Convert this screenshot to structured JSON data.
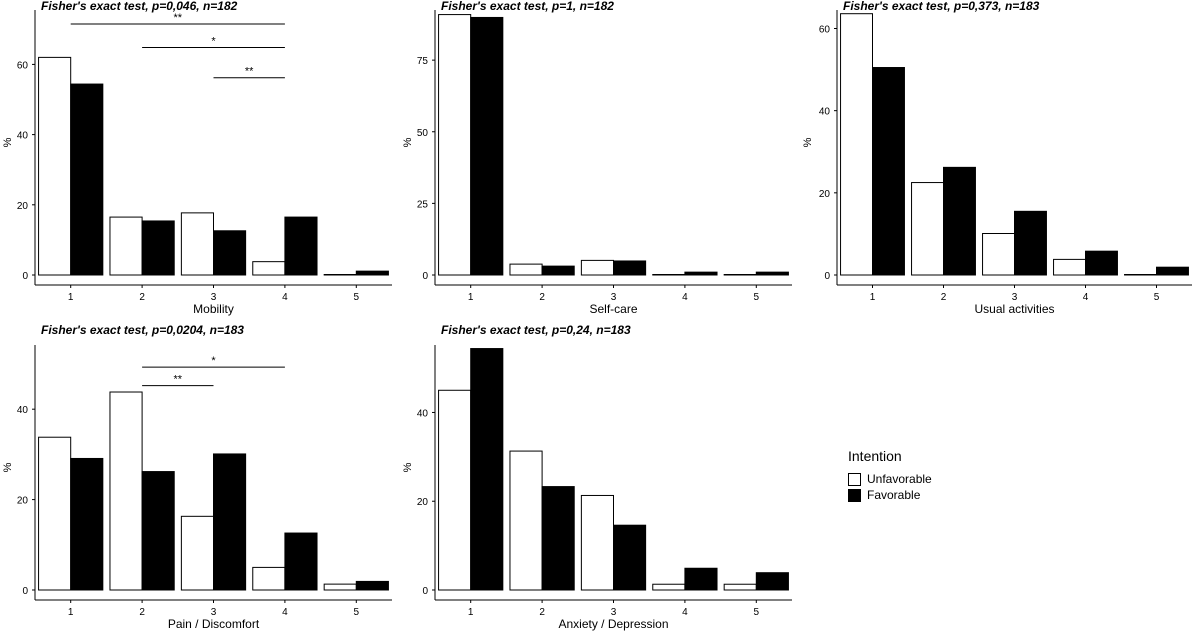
{
  "legend": {
    "title": "Intention",
    "entries": [
      {
        "name": "Unfavorable",
        "color": "#ffffff"
      },
      {
        "name": "Favorable",
        "color": "#000000"
      }
    ]
  },
  "chart_data": [
    {
      "id": "mobility",
      "type": "bar",
      "title": "Fisher's exact test, p=0,046, n=182",
      "xlabel": "Mobility",
      "ylabel": "%",
      "categories": [
        "1",
        "2",
        "3",
        "4",
        "5"
      ],
      "yticks": [
        0,
        20,
        40,
        60
      ],
      "ylim": [
        0,
        75.5
      ],
      "series": [
        {
          "name": "Unfavorable",
          "color": "#ffffff",
          "values": [
            62.0,
            16.5,
            17.7,
            3.8,
            0.1
          ]
        },
        {
          "name": "Favorable",
          "color": "#000000",
          "values": [
            54.4,
            15.4,
            12.6,
            16.5,
            1.1
          ]
        }
      ],
      "annotations": [
        {
          "from": "1",
          "to": "4",
          "y": 71.5,
          "label": "**"
        },
        {
          "from": "2",
          "to": "4",
          "y": 64.8,
          "label": "*"
        },
        {
          "from": "3",
          "to": "4",
          "y": 56.2,
          "label": "**"
        }
      ]
    },
    {
      "id": "selfcare",
      "type": "bar",
      "title": "Fisher's exact test, p=1, n=182",
      "xlabel": "Self-care",
      "ylabel": "%",
      "categories": [
        "1",
        "2",
        "3",
        "4",
        "5"
      ],
      "yticks": [
        0,
        25,
        50,
        75
      ],
      "ylim": [
        0,
        92.5
      ],
      "series": [
        {
          "name": "Unfavorable",
          "color": "#ffffff",
          "values": [
            90.9,
            3.8,
            5.1,
            0.1,
            0.1
          ]
        },
        {
          "name": "Favorable",
          "color": "#000000",
          "values": [
            89.9,
            3.1,
            4.9,
            1.0,
            1.0
          ]
        }
      ],
      "annotations": []
    },
    {
      "id": "usual",
      "type": "bar",
      "title": "Fisher's exact test, p=0,373, n=183",
      "xlabel": "Usual activities",
      "ylabel": "%",
      "categories": [
        "1",
        "2",
        "3",
        "4",
        "5"
      ],
      "yticks": [
        0,
        20,
        40,
        60
      ],
      "ylim": [
        0,
        64.5
      ],
      "series": [
        {
          "name": "Unfavorable",
          "color": "#ffffff",
          "values": [
            63.6,
            22.5,
            10.1,
            3.8,
            0.1
          ]
        },
        {
          "name": "Favorable",
          "color": "#000000",
          "values": [
            50.5,
            26.2,
            15.5,
            5.8,
            1.9
          ]
        }
      ],
      "annotations": []
    },
    {
      "id": "pain",
      "type": "bar",
      "title": "Fisher's exact test, p=0,0204, n=183",
      "xlabel": "Pain / Discomfort",
      "ylabel": "%",
      "categories": [
        "1",
        "2",
        "3",
        "4",
        "5"
      ],
      "yticks": [
        0,
        20,
        40
      ],
      "ylim": [
        0,
        54.2
      ],
      "series": [
        {
          "name": "Unfavorable",
          "color": "#ffffff",
          "values": [
            33.8,
            43.8,
            16.3,
            5.0,
            1.3
          ]
        },
        {
          "name": "Favorable",
          "color": "#000000",
          "values": [
            29.1,
            26.2,
            30.1,
            12.6,
            1.9
          ]
        }
      ],
      "annotations": [
        {
          "from": "2",
          "to": "4",
          "y": 49.3,
          "label": "*"
        },
        {
          "from": "2",
          "to": "3",
          "y": 45.2,
          "label": "**"
        }
      ]
    },
    {
      "id": "anxiety",
      "type": "bar",
      "title": "Fisher's exact test, p=0,24, n=183",
      "xlabel": "Anxiety / Depression",
      "ylabel": "%",
      "categories": [
        "1",
        "2",
        "3",
        "4",
        "5"
      ],
      "yticks": [
        0,
        20,
        40
      ],
      "ylim": [
        0,
        55.2
      ],
      "series": [
        {
          "name": "Unfavorable",
          "color": "#ffffff",
          "values": [
            45.0,
            31.3,
            21.3,
            1.3,
            1.3
          ]
        },
        {
          "name": "Favorable",
          "color": "#000000",
          "values": [
            54.4,
            23.3,
            14.6,
            4.9,
            3.9
          ]
        }
      ],
      "annotations": []
    }
  ]
}
